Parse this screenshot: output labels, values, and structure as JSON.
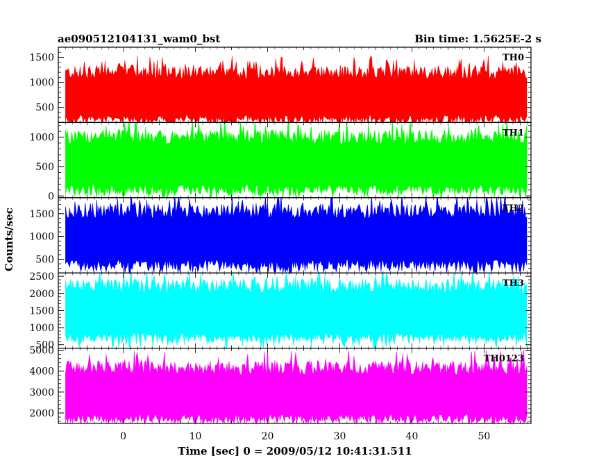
{
  "header": {
    "left_title": "ae090512104131_wam0_bst",
    "right_title": "Bin time: 1.5625E-2 s"
  },
  "chart_data": {
    "type": "line",
    "xlabel": "Time [sec] 0 = 2009/05/12 10:41:31.511",
    "ylabel": "Counts/sec",
    "xlim": [
      -9,
      56.5
    ],
    "x_ticks": [
      0,
      10,
      20,
      30,
      40,
      50
    ],
    "x_tick_labels": [
      "0",
      "10",
      "20",
      "30",
      "40",
      "50"
    ],
    "data_x_range": [
      -8,
      56
    ],
    "panels": [
      {
        "name": "TH0",
        "color": "#ff0000",
        "ylim": [
          200,
          1700
        ],
        "y_ticks": [
          500,
          1000,
          1500
        ],
        "y_tick_labels": [
          "500",
          "1000",
          "1500"
        ],
        "mean": 750,
        "typical_min": 250,
        "typical_max": 1400,
        "max": 1700
      },
      {
        "name": "TH1",
        "color": "#00ff00",
        "ylim": [
          -30,
          1250
        ],
        "y_ticks": [
          0,
          500,
          1000
        ],
        "y_tick_labels": [
          "0",
          "500",
          "1000"
        ],
        "mean": 580,
        "typical_min": 50,
        "typical_max": 1150,
        "max": 1250
      },
      {
        "name": "TH2",
        "color": "#0000ff",
        "ylim": [
          200,
          1850
        ],
        "y_ticks": [
          500,
          1000,
          1500
        ],
        "y_tick_labels": [
          "500",
          "1000",
          "1500"
        ],
        "mean": 1000,
        "typical_min": 250,
        "typical_max": 1700,
        "max": 1850
      },
      {
        "name": "TH3",
        "color": "#00ffff",
        "ylim": [
          400,
          2600
        ],
        "y_ticks": [
          500,
          1000,
          1500,
          2000,
          2500
        ],
        "y_tick_labels": [
          "500",
          "1000",
          "1500",
          "2000",
          "2500"
        ],
        "mean": 1500,
        "typical_min": 550,
        "typical_max": 2400,
        "max": 2600
      },
      {
        "name": "TH0123",
        "color": "#ff00ff",
        "ylim": [
          1500,
          5100
        ],
        "y_ticks": [
          2000,
          3000,
          4000,
          5000
        ],
        "y_tick_labels": [
          "2000",
          "3000",
          "4000",
          "5000"
        ],
        "mean": 3000,
        "typical_min": 1700,
        "typical_max": 4700,
        "max": 5100
      }
    ]
  }
}
